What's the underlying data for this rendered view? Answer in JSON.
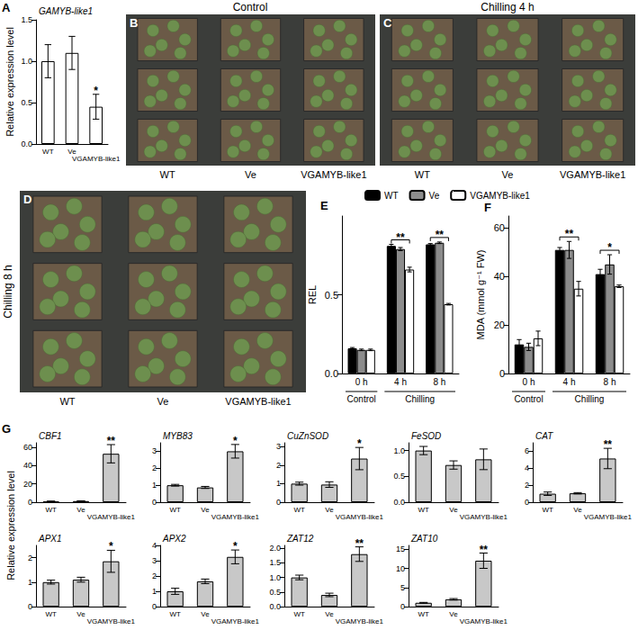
{
  "photo_panels": [
    {
      "panel": "B",
      "title": "Control",
      "labels": [
        "WT",
        "Ve",
        "VGAMYB-like1"
      ]
    },
    {
      "panel": "C",
      "title": "Chilling 4 h",
      "labels": [
        "WT",
        "Ve",
        "VGAMYB-like1"
      ]
    },
    {
      "panel": "D",
      "title": "Chilling 8 h",
      "labels": [
        "WT",
        "Ve",
        "VGAMYB-like1"
      ]
    }
  ],
  "chart_data": [
    {
      "type": "bar",
      "panel": "A",
      "title": "GAMYB-like1",
      "ylabel": "Relative expression level",
      "categories": [
        "WT",
        "Ve",
        "VGAMYB-like1"
      ],
      "values": [
        1.0,
        1.1,
        0.45
      ],
      "errors": [
        0.2,
        0.2,
        0.15
      ],
      "color": "#ffffff",
      "significance": [
        null,
        null,
        "*"
      ],
      "ylim": [
        0,
        1.5
      ],
      "yticks": [
        {
          "value": 0,
          "label": "0.0"
        },
        {
          "value": 0.5,
          "label": "0.5"
        },
        {
          "value": 1,
          "label": "1.0"
        },
        {
          "value": 1.5,
          "label": "1.5"
        }
      ]
    },
    {
      "type": "bar",
      "panel": "E",
      "ylabel": "REL",
      "legend": "top",
      "categories": [
        "0 h",
        "4 h",
        "8 h"
      ],
      "category_groups": [
        {
          "label": "Control",
          "categories": [
            "0 h"
          ]
        },
        {
          "label": "Chilling",
          "categories": [
            "4 h",
            "8 h"
          ]
        }
      ],
      "series": [
        {
          "name": "WT",
          "color": "#000000",
          "values": [
            0.16,
            0.81,
            0.82
          ],
          "errors": [
            0.005,
            0.01,
            0.005
          ]
        },
        {
          "name": "Ve",
          "color": "#8c8c8c",
          "values": [
            0.15,
            0.79,
            0.83
          ],
          "errors": [
            0.005,
            0.01,
            0.005
          ]
        },
        {
          "name": "VGAMYB-like1",
          "color": "#ffffff",
          "values": [
            0.15,
            0.66,
            0.44
          ],
          "errors": [
            0.005,
            0.015,
            0.005
          ]
        }
      ],
      "significance": [
        null,
        "**",
        "**"
      ],
      "ylim": [
        0,
        1.0
      ],
      "yticks": [
        {
          "value": 0,
          "label": "0.0"
        },
        {
          "value": 0.5,
          "label": "0.5"
        }
      ]
    },
    {
      "type": "bar",
      "panel": "F",
      "ylabel": "MDA (mmol g⁻¹ FW)",
      "categories": [
        "0 h",
        "4 h",
        "8 h"
      ],
      "category_groups": [
        {
          "label": "Control",
          "categories": [
            "0 h"
          ]
        },
        {
          "label": "Chilling",
          "categories": [
            "4 h",
            "8 h"
          ]
        }
      ],
      "series": [
        {
          "name": "WT",
          "color": "#000000",
          "values": [
            12,
            51,
            41
          ],
          "errors": [
            2,
            1,
            2
          ]
        },
        {
          "name": "Ve",
          "color": "#8c8c8c",
          "values": [
            11,
            51,
            45
          ],
          "errors": [
            1.5,
            3.5,
            4
          ]
        },
        {
          "name": "VGAMYB-like1",
          "color": "#ffffff",
          "values": [
            14.5,
            35,
            36
          ],
          "errors": [
            3,
            3,
            0.5
          ]
        }
      ],
      "significance": [
        null,
        "**",
        "*"
      ],
      "ylim": [
        0,
        65
      ],
      "yticks": [
        0,
        20,
        40,
        60
      ]
    },
    {
      "type": "bar",
      "panel": "G",
      "title": "CBF1",
      "ylabel": "Relative expression level",
      "categories": [
        "WT",
        "Ve",
        "VGAMYB-like1"
      ],
      "values": [
        1,
        1.2,
        53
      ],
      "errors": [
        0.2,
        0.3,
        10
      ],
      "color": "#c8c8c8",
      "significance": [
        null,
        null,
        "**"
      ],
      "ylim": [
        0,
        65
      ],
      "yticks": [
        0,
        20,
        40,
        60
      ]
    },
    {
      "type": "bar",
      "title": "MYB83",
      "categories": [
        "WT",
        "Ve",
        "VGAMYB-like1"
      ],
      "values": [
        1,
        0.87,
        3.0
      ],
      "errors": [
        0.05,
        0.06,
        0.4
      ],
      "color": "#c8c8c8",
      "significance": [
        null,
        null,
        "*"
      ],
      "ylim": [
        0,
        3.5
      ],
      "yticks": [
        0,
        1,
        2,
        3
      ]
    },
    {
      "type": "bar",
      "title": "CuZnSOD",
      "categories": [
        "WT",
        "Ve",
        "VGAMYB-like1"
      ],
      "values": [
        1,
        0.95,
        2.35
      ],
      "errors": [
        0.08,
        0.15,
        0.6
      ],
      "color": "#c8c8c8",
      "significance": [
        null,
        null,
        "*"
      ],
      "ylim": [
        0,
        3.2
      ],
      "yticks": [
        0,
        1,
        2,
        3
      ]
    },
    {
      "type": "bar",
      "title": "FeSOD",
      "categories": [
        "WT",
        "Ve",
        "VGAMYB-like1"
      ],
      "values": [
        1.0,
        0.72,
        0.83
      ],
      "errors": [
        0.08,
        0.08,
        0.2
      ],
      "color": "#c8c8c8",
      "ylim": [
        0,
        1.15
      ],
      "yticks": [
        {
          "value": 0,
          "label": "0.0"
        },
        {
          "value": 0.5,
          "label": "0.5"
        },
        {
          "value": 1,
          "label": "1.0"
        }
      ]
    },
    {
      "type": "bar",
      "title": "CAT",
      "categories": [
        "WT",
        "Ve",
        "VGAMYB-like1"
      ],
      "values": [
        1,
        1.05,
        5.15
      ],
      "errors": [
        0.2,
        0.08,
        1.2
      ],
      "color": "#c8c8c8",
      "significance": [
        null,
        null,
        "**"
      ],
      "ylim": [
        0,
        7
      ],
      "yticks": [
        0,
        2,
        4,
        6
      ]
    },
    {
      "type": "bar",
      "title": "APX1",
      "categories": [
        "WT",
        "Ve",
        "VGAMYB-like1"
      ],
      "values": [
        1,
        1.1,
        1.85
      ],
      "errors": [
        0.08,
        0.1,
        0.45
      ],
      "color": "#c8c8c8",
      "significance": [
        null,
        null,
        "*"
      ],
      "ylim": [
        0,
        2.5
      ],
      "yticks": [
        0,
        1,
        2
      ]
    },
    {
      "type": "bar",
      "title": "APX2",
      "categories": [
        "WT",
        "Ve",
        "VGAMYB-like1"
      ],
      "values": [
        1,
        1.65,
        3.25
      ],
      "errors": [
        0.2,
        0.15,
        0.45
      ],
      "color": "#c8c8c8",
      "significance": [
        null,
        null,
        "*"
      ],
      "ylim": [
        0,
        4
      ],
      "yticks": [
        0,
        1,
        2,
        3,
        4
      ]
    },
    {
      "type": "bar",
      "title": "ZAT12",
      "categories": [
        "WT",
        "Ve",
        "VGAMYB-like1"
      ],
      "values": [
        1.0,
        0.4,
        1.8
      ],
      "errors": [
        0.08,
        0.06,
        0.25
      ],
      "color": "#c8c8c8",
      "significance": [
        null,
        null,
        "**"
      ],
      "ylim": [
        0,
        2.1
      ],
      "yticks": [
        {
          "value": 0,
          "label": "0.0"
        },
        {
          "value": 0.5,
          "label": "0.5"
        },
        {
          "value": 1,
          "label": "1.0"
        },
        {
          "value": 1.5,
          "label": "1.5"
        },
        {
          "value": 2,
          "label": "2.0"
        }
      ]
    },
    {
      "type": "bar",
      "title": "ZAT10",
      "categories": [
        "WT",
        "Ve",
        "VGAMYB-like1"
      ],
      "values": [
        1,
        1.9,
        12
      ],
      "errors": [
        0.1,
        0.2,
        2.0
      ],
      "color": "#c8c8c8",
      "significance": [
        null,
        null,
        "**"
      ],
      "ylim": [
        0,
        16
      ],
      "yticks": [
        0,
        5,
        10,
        15
      ]
    }
  ]
}
